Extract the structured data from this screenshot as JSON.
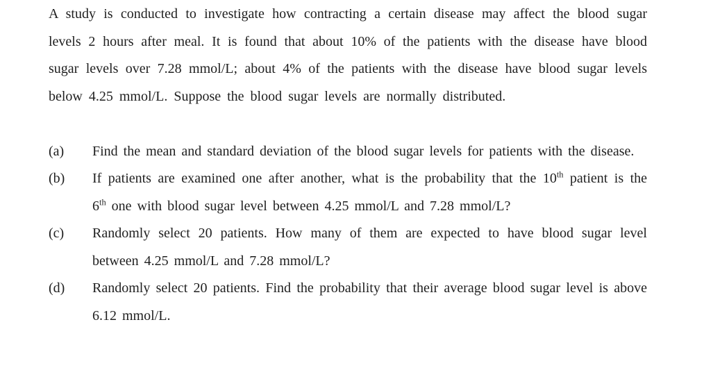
{
  "document": {
    "colors": {
      "background": "#ffffff",
      "text": "#1f1f1f"
    },
    "intro": "A study is conducted to investigate how contracting a certain disease may affect the blood sugar levels 2 hours after meal. It is found that about 10% of the patients with the disease have blood sugar levels over 7.28 mmol/L; about 4% of the patients with the disease have blood sugar levels below 4.25 mmol/L. Suppose the blood sugar levels are normally distributed.",
    "questions": [
      {
        "label": "(a)",
        "parts": [
          {
            "text": "Find the mean and standard deviation of the blood sugar levels for patients with the disease."
          }
        ]
      },
      {
        "label": "(b)",
        "parts": [
          {
            "text": "If patients are examined one after another, what is the probability that the 10"
          },
          {
            "sup": "th"
          },
          {
            "text": " patient is the 6"
          },
          {
            "sup": "th"
          },
          {
            "text": " one with blood sugar level between 4.25 mmol/L and 7.28 mmol/L?"
          }
        ]
      },
      {
        "label": "(c)",
        "parts": [
          {
            "text": "Randomly select 20 patients. How many of them are expected to have blood sugar level between 4.25 mmol/L and 7.28 mmol/L?"
          }
        ]
      },
      {
        "label": "(d)",
        "parts": [
          {
            "text": "Randomly select 20 patients. Find the probability that their average blood sugar level is above 6.12 mmol/L."
          }
        ]
      }
    ]
  }
}
